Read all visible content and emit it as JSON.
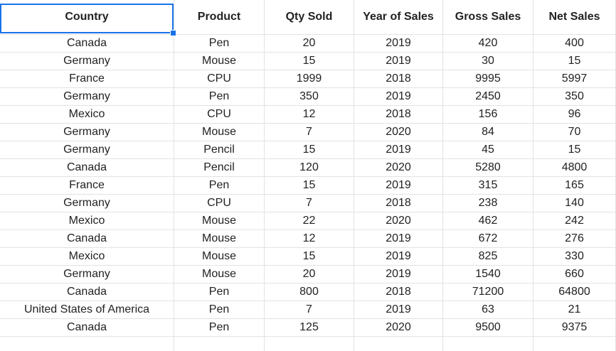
{
  "table": {
    "header": [
      "Country",
      "Product",
      "Qty Sold",
      "Year of Sales",
      "Gross Sales",
      "Net Sales"
    ],
    "rows": [
      [
        "Canada",
        "Pen",
        20,
        2019,
        420,
        400
      ],
      [
        "Germany",
        "Mouse",
        15,
        2019,
        30,
        15
      ],
      [
        "France",
        "CPU",
        1999,
        2018,
        9995,
        5997
      ],
      [
        "Germany",
        "Pen",
        350,
        2019,
        2450,
        350
      ],
      [
        "Mexico",
        "CPU",
        12,
        2018,
        156,
        96
      ],
      [
        "Germany",
        "Mouse",
        7,
        2020,
        84,
        70
      ],
      [
        "Germany",
        "Pencil",
        15,
        2019,
        45,
        15
      ],
      [
        "Canada",
        "Pencil",
        120,
        2020,
        5280,
        4800
      ],
      [
        "France",
        "Pen",
        15,
        2019,
        315,
        165
      ],
      [
        "Germany",
        "CPU",
        7,
        2018,
        238,
        140
      ],
      [
        "Mexico",
        "Mouse",
        22,
        2020,
        462,
        242
      ],
      [
        "Canada",
        "Mouse",
        12,
        2019,
        672,
        276
      ],
      [
        "Mexico",
        "Mouse",
        15,
        2019,
        825,
        330
      ],
      [
        "Germany",
        "Mouse",
        20,
        2019,
        1540,
        660
      ],
      [
        "Canada",
        "Pen",
        800,
        2018,
        71200,
        64800
      ],
      [
        "United States of America",
        "Pen",
        7,
        2019,
        63,
        21
      ],
      [
        "Canada",
        "Pen",
        125,
        2020,
        9500,
        9375
      ]
    ]
  }
}
